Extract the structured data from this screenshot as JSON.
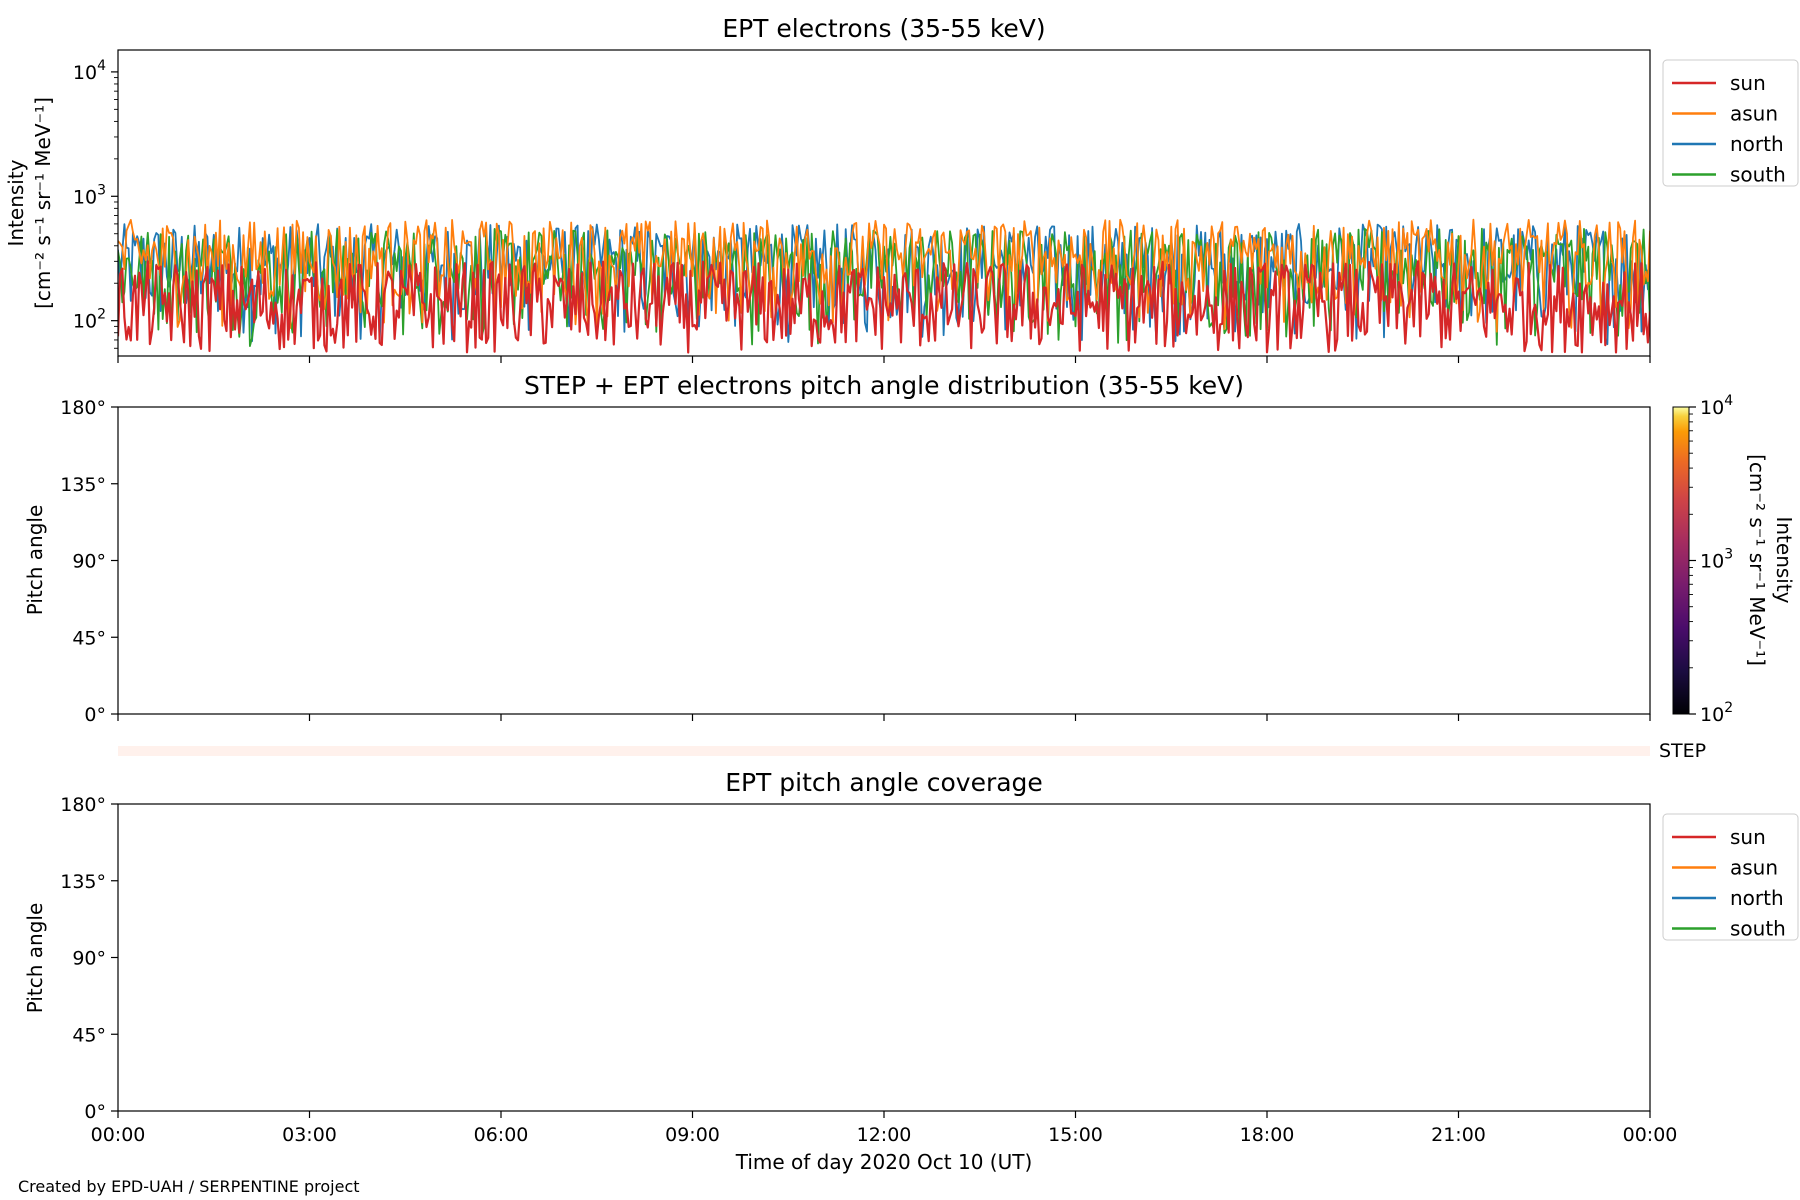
{
  "footer": "Created by EPD-UAH / SERPENTINE project",
  "colors": {
    "sun": "#d62728",
    "asun": "#ff7f0e",
    "north": "#1f77b4",
    "south": "#2ca02c"
  },
  "chart_data": [
    {
      "type": "line",
      "title": "EPT electrons (35-55 keV)",
      "ylabel_line1": "Intensity",
      "ylabel_line2": "[cm⁻² s⁻¹ sr⁻¹ MeV⁻¹]",
      "yscale": "log",
      "ylim": [
        52,
        15000
      ],
      "yticks": [
        {
          "value": 100,
          "base": "10",
          "exp": "2"
        },
        {
          "value": 1000,
          "base": "10",
          "exp": "3"
        },
        {
          "value": 10000,
          "base": "10",
          "exp": "4"
        }
      ],
      "xlim": [
        "00:00",
        "24:00"
      ],
      "legend": "right, outside plot",
      "series": [
        {
          "name": "sun",
          "color": "#d62728",
          "typical_range": [
            55,
            300
          ]
        },
        {
          "name": "asun",
          "color": "#ff7f0e",
          "typical_range": [
            80,
            650
          ]
        },
        {
          "name": "north",
          "color": "#1f77b4",
          "typical_range": [
            60,
            600
          ]
        },
        {
          "name": "south",
          "color": "#2ca02c",
          "typical_range": [
            60,
            550
          ]
        }
      ]
    },
    {
      "type": "heatmap",
      "title": "STEP + EPT electrons pitch angle distribution (35-55 keV)",
      "ylabel": "Pitch angle",
      "ylim": [
        0,
        180
      ],
      "yticks": [
        "0°",
        "45°",
        "90°",
        "135°",
        "180°"
      ],
      "colorbar": {
        "label_line1": "Intensity",
        "label_line2": "[cm⁻² s⁻¹ sr⁻¹ MeV⁻¹]",
        "scale": "log",
        "range": [
          100,
          10000
        ],
        "colormap": "inferno",
        "ticks": [
          {
            "base": "10",
            "exp": "2"
          },
          {
            "base": "10",
            "exp": "3"
          },
          {
            "base": "10",
            "exp": "4"
          }
        ]
      }
    },
    {
      "type": "heatmap",
      "label": "STEP"
    },
    {
      "type": "line",
      "title": "EPT pitch angle coverage",
      "ylabel": "Pitch angle",
      "ylim": [
        0,
        180
      ],
      "yticks": [
        "0°",
        "45°",
        "90°",
        "135°",
        "180°"
      ],
      "xlabel": "Time of day 2020 Oct 10 (UT)",
      "xticks": [
        "00:00",
        "03:00",
        "06:00",
        "09:00",
        "12:00",
        "15:00",
        "18:00",
        "21:00",
        "00:00"
      ],
      "legend": "right, outside plot",
      "series": [
        {
          "name": "sun",
          "color": "#d62728"
        },
        {
          "name": "asun",
          "color": "#ff7f0e"
        },
        {
          "name": "north",
          "color": "#1f77b4"
        },
        {
          "name": "south",
          "color": "#2ca02c"
        }
      ]
    }
  ]
}
